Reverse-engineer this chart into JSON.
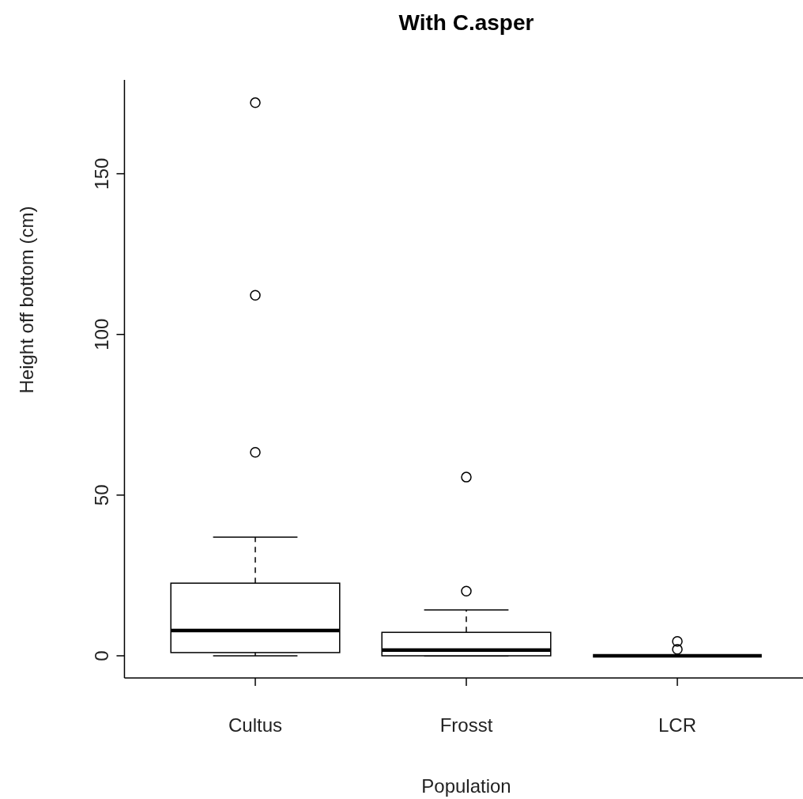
{
  "chart_data": {
    "type": "box",
    "title": "With C.asper",
    "xlabel": "Population",
    "ylabel": "Height off bottom (cm)",
    "categories": [
      "Cultus",
      "Frosst",
      "LCR"
    ],
    "boxes": [
      {
        "low": 0,
        "q1": 1,
        "median": 7.9,
        "q3": 22.6,
        "high": 36.9,
        "outliers": [
          63.3,
          112.2,
          172.1
        ]
      },
      {
        "low": 0,
        "q1": 0,
        "median": 1.8,
        "q3": 7.3,
        "high": 14.3,
        "outliers": [
          20.1,
          55.6
        ]
      },
      {
        "low": 0,
        "q1": 0,
        "median": 0,
        "q3": 0,
        "high": 0,
        "outliers": [
          2.0,
          4.5
        ]
      }
    ],
    "ylim": [
      -6.9,
      179.2
    ],
    "yticks": [
      0,
      50,
      100,
      150
    ],
    "grid": false
  }
}
